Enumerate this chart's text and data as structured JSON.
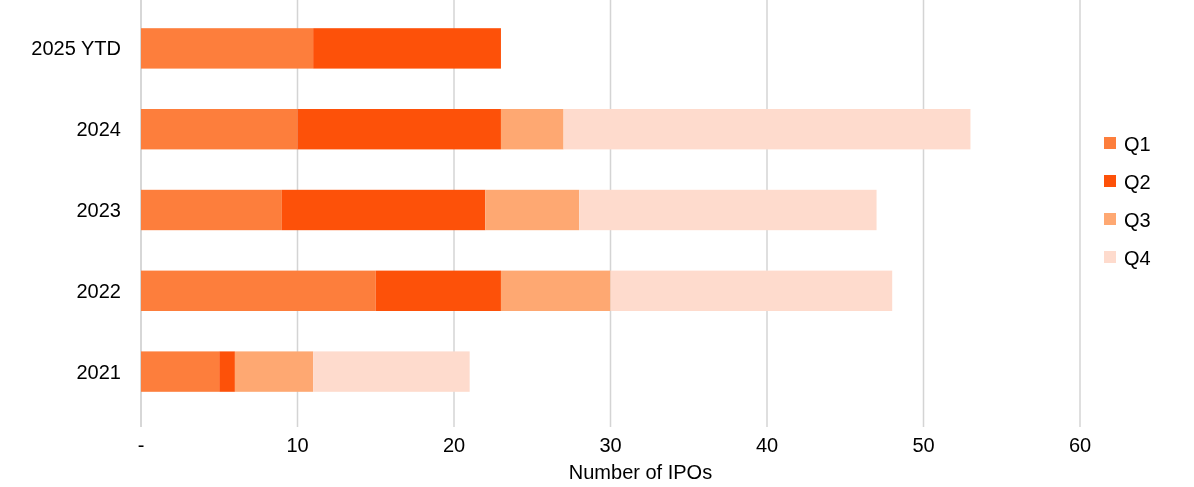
{
  "chart_data": {
    "type": "bar",
    "orientation": "horizontal",
    "stacked": true,
    "xlabel": "Number of IPOs",
    "categories": [
      "2025 YTD",
      "2024",
      "2023",
      "2022",
      "2021"
    ],
    "series": [
      {
        "name": "Q1",
        "color": "#fd7e3c",
        "values": [
          11,
          10,
          9,
          15,
          5
        ]
      },
      {
        "name": "Q2",
        "color": "#fd5109",
        "values": [
          12,
          13,
          13,
          8,
          1
        ]
      },
      {
        "name": "Q3",
        "color": "#fea872",
        "values": [
          null,
          4,
          6,
          7,
          5
        ]
      },
      {
        "name": "Q4",
        "color": "#fedbcd",
        "values": [
          null,
          26,
          19,
          18,
          10
        ]
      }
    ],
    "xlim": [
      0,
      60
    ],
    "xticks": [
      {
        "value": 0,
        "label": "-"
      },
      10,
      20,
      30,
      40,
      50,
      60
    ],
    "grid": "x",
    "legend": "right"
  }
}
